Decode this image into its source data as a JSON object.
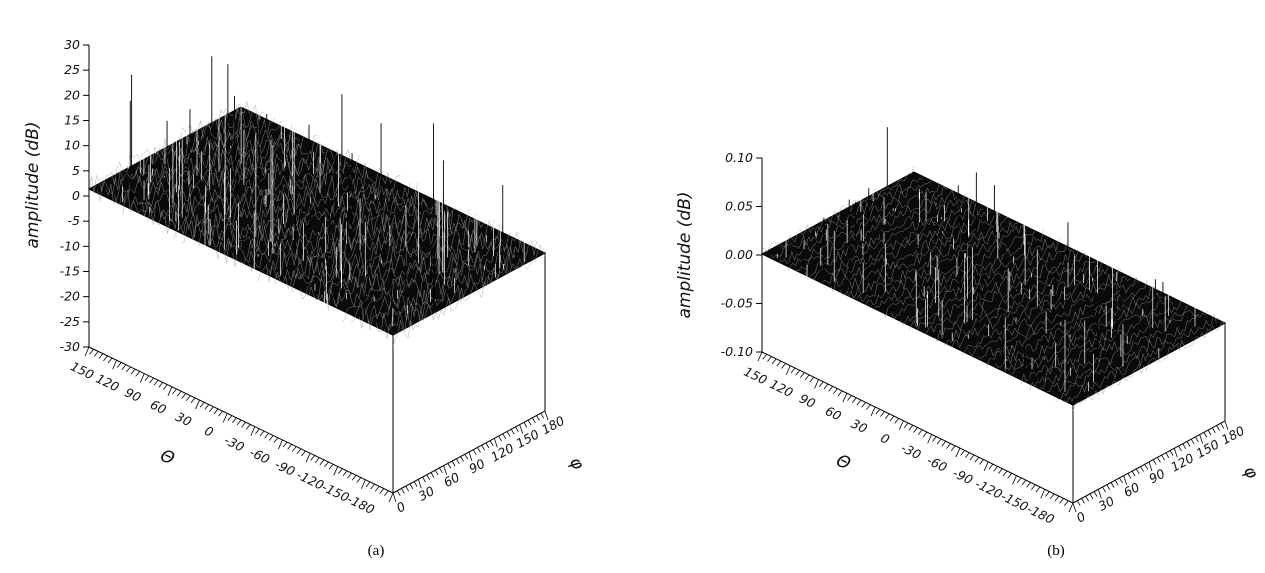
{
  "chart_data": [
    {
      "type": "surface",
      "panel": "a",
      "caption": "(a)",
      "zlabel": "amplitude  (dB)",
      "xlabel": "Θ",
      "ylabel": "φ",
      "zlim": [
        -30,
        30
      ],
      "z_ticks": [
        "30",
        "25",
        "20",
        "15",
        "10",
        "5",
        "0",
        "-5",
        "-10",
        "-15",
        "-20",
        "-25",
        "-30"
      ],
      "theta_ticks": [
        "150",
        "120",
        "90",
        "60",
        "30",
        "0",
        "-30",
        "-60",
        "-90",
        "-120",
        "-150",
        "-180"
      ],
      "phi_ticks": [
        "0",
        "30",
        "60",
        "90",
        "120",
        "150",
        "180"
      ],
      "surface_color": "#000000"
    },
    {
      "type": "surface",
      "panel": "b",
      "caption": "(b)",
      "zlabel": "amplitude  (dB)",
      "xlabel": "Θ",
      "ylabel": "φ",
      "zlim": [
        -0.1,
        0.1
      ],
      "z_ticks": [
        "0.10",
        "0.05",
        "0.00",
        "-0.05",
        "-0.10"
      ],
      "theta_ticks": [
        "150",
        "120",
        "90",
        "60",
        "30",
        "0",
        "-30",
        "-60",
        "-90",
        "-120",
        "-150",
        "-180"
      ],
      "phi_ticks": [
        "0",
        "30",
        "60",
        "90",
        "120",
        "150",
        "180"
      ],
      "surface_color": "#000000"
    }
  ]
}
